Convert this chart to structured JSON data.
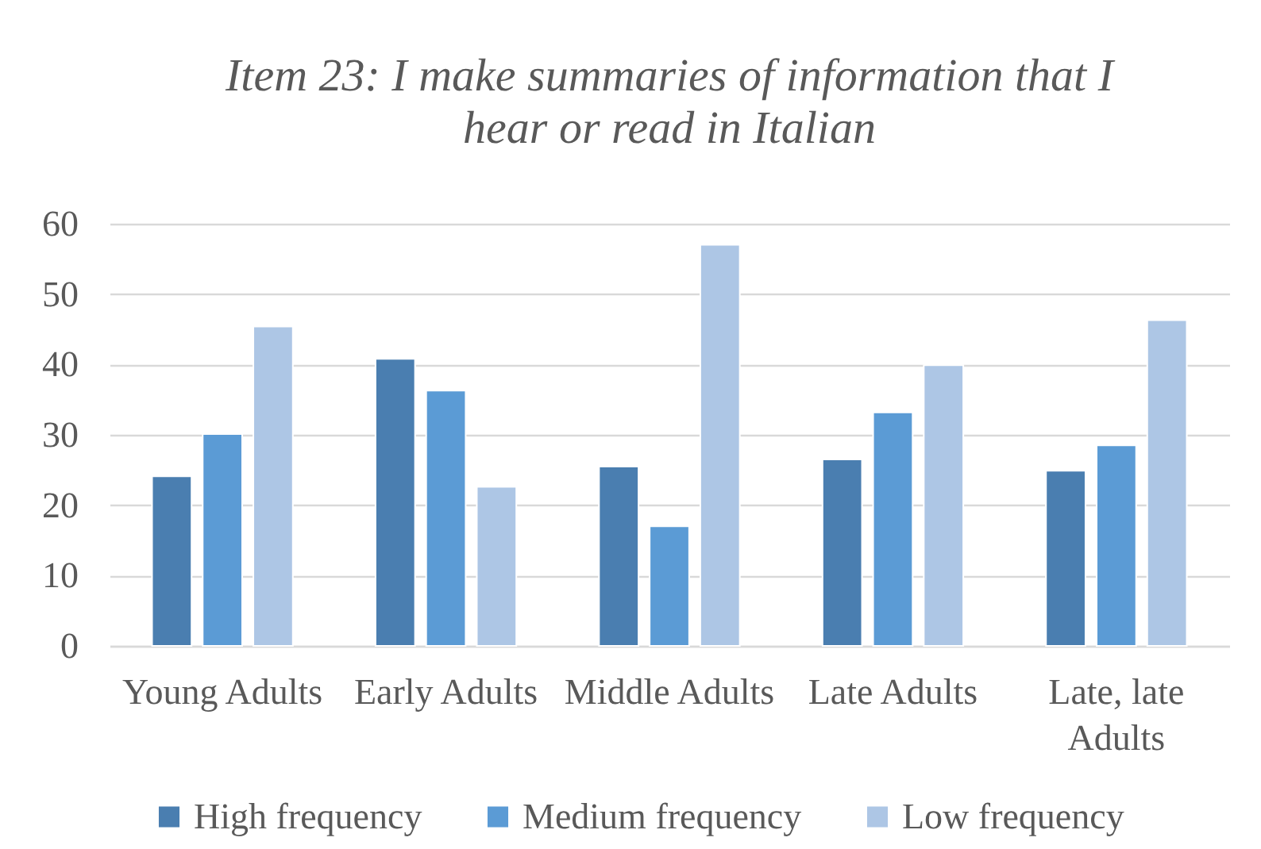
{
  "chart_data": {
    "type": "bar",
    "title": "Item 23: I make summaries of information that I hear or read in Italian",
    "categories": [
      "Young Adults",
      "Early Adults",
      "Middle Adults",
      "Late Adults",
      "Late, late Adults"
    ],
    "series": [
      {
        "name": "High frequency",
        "color": "#4a7eb0",
        "values": [
          24.1,
          40.8,
          25.5,
          26.5,
          24.9
        ]
      },
      {
        "name": "Medium frequency",
        "color": "#5b9bd5",
        "values": [
          30.1,
          36.3,
          17.0,
          33.2,
          28.5
        ]
      },
      {
        "name": "Low frequency",
        "color": "#adc6e5",
        "values": [
          45.4,
          22.6,
          57.0,
          39.9,
          46.3
        ]
      }
    ],
    "ylim": [
      0,
      60
    ],
    "yticks": [
      0,
      10,
      20,
      30,
      40,
      50,
      60
    ],
    "grid": "y",
    "legend": "bottom"
  }
}
